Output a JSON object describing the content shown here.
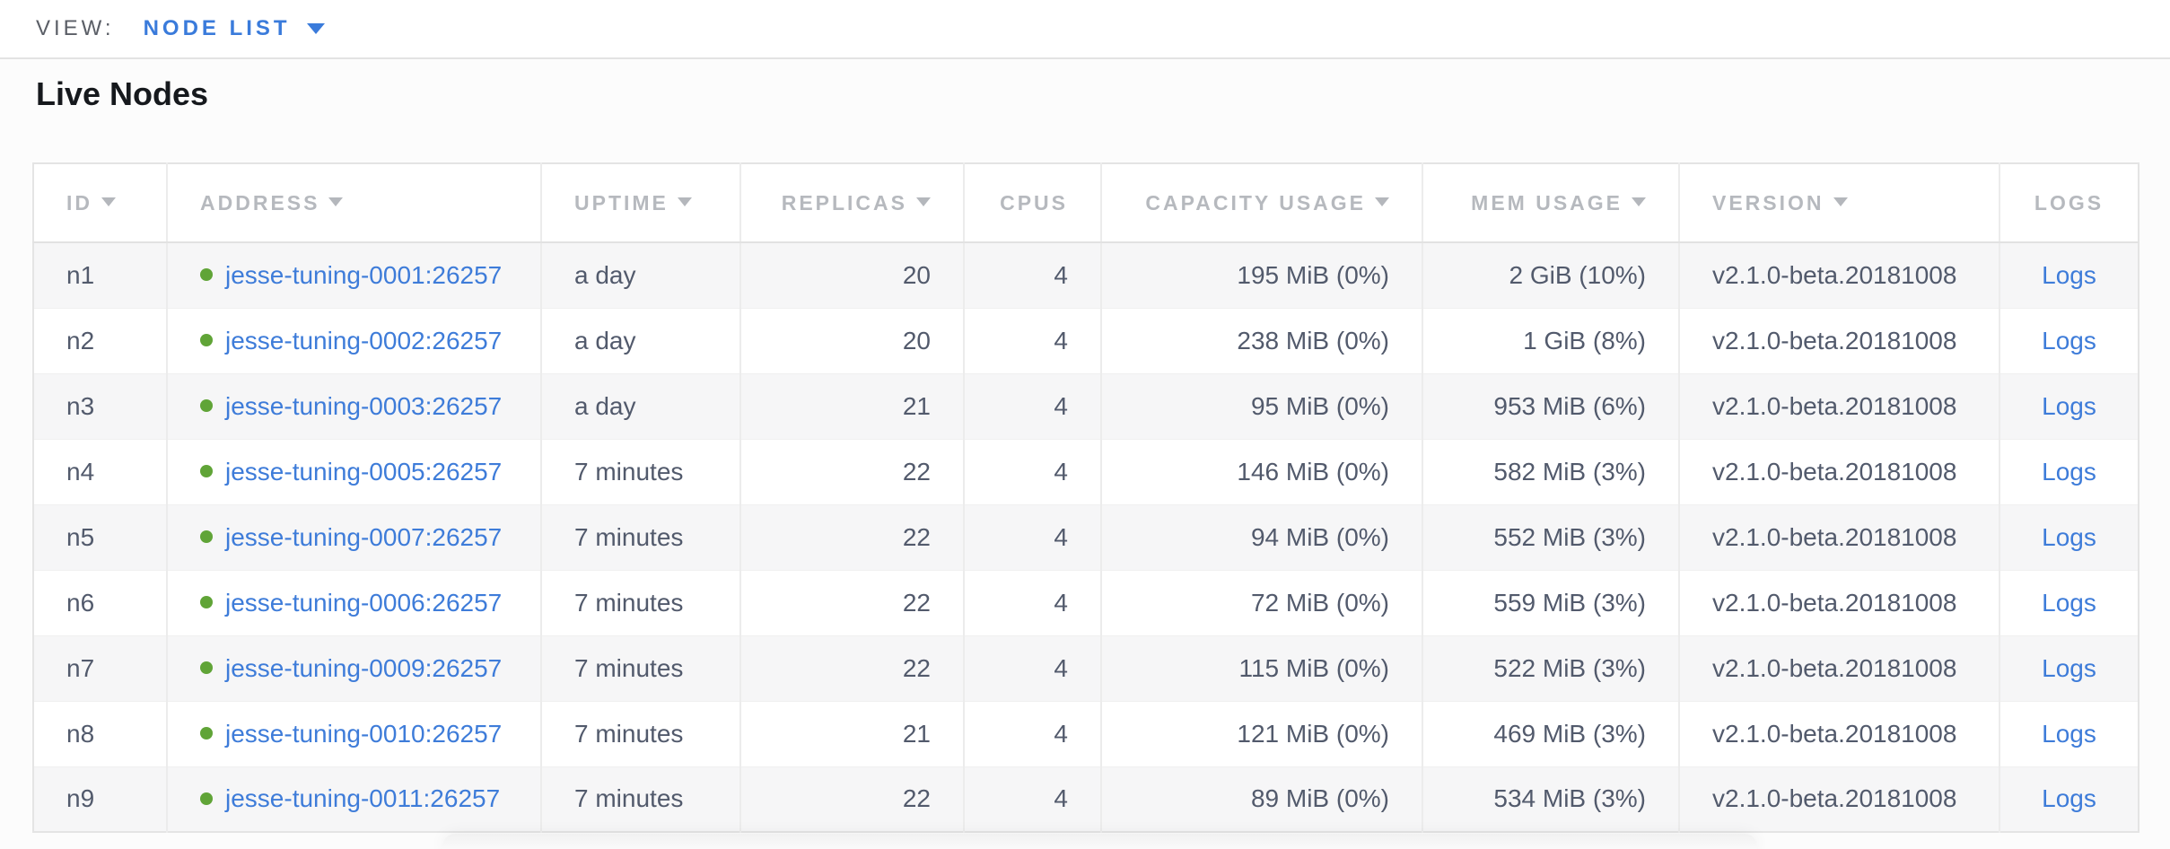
{
  "view_bar": {
    "label": "VIEW:",
    "selected": "NODE LIST"
  },
  "page": {
    "title": "Live Nodes"
  },
  "colors": {
    "accent_blue": "#3a7bdb",
    "link_blue": "#3e7cd9",
    "status_green": "#60a437",
    "header_gray": "#b6b9be",
    "cell_slate": "#525a6c"
  },
  "table": {
    "columns": [
      {
        "label": "ID",
        "sortable": true
      },
      {
        "label": "ADDRESS",
        "sortable": true
      },
      {
        "label": "UPTIME",
        "sortable": true
      },
      {
        "label": "REPLICAS",
        "sortable": true
      },
      {
        "label": "CPUS",
        "sortable": false
      },
      {
        "label": "CAPACITY USAGE",
        "sortable": true
      },
      {
        "label": "MEM USAGE",
        "sortable": true
      },
      {
        "label": "VERSION",
        "sortable": true
      },
      {
        "label": "LOGS",
        "sortable": false
      }
    ],
    "rows": [
      {
        "id": "n1",
        "address": "jesse-tuning-0001:26257",
        "uptime": "a day",
        "replicas": "20",
        "cpus": "4",
        "capacity_usage": "195 MiB (0%)",
        "mem_usage": "2 GiB (10%)",
        "version": "v2.1.0-beta.20181008",
        "logs": "Logs"
      },
      {
        "id": "n2",
        "address": "jesse-tuning-0002:26257",
        "uptime": "a day",
        "replicas": "20",
        "cpus": "4",
        "capacity_usage": "238 MiB (0%)",
        "mem_usage": "1 GiB (8%)",
        "version": "v2.1.0-beta.20181008",
        "logs": "Logs"
      },
      {
        "id": "n3",
        "address": "jesse-tuning-0003:26257",
        "uptime": "a day",
        "replicas": "21",
        "cpus": "4",
        "capacity_usage": "95 MiB (0%)",
        "mem_usage": "953 MiB (6%)",
        "version": "v2.1.0-beta.20181008",
        "logs": "Logs"
      },
      {
        "id": "n4",
        "address": "jesse-tuning-0005:26257",
        "uptime": "7 minutes",
        "replicas": "22",
        "cpus": "4",
        "capacity_usage": "146 MiB (0%)",
        "mem_usage": "582 MiB (3%)",
        "version": "v2.1.0-beta.20181008",
        "logs": "Logs"
      },
      {
        "id": "n5",
        "address": "jesse-tuning-0007:26257",
        "uptime": "7 minutes",
        "replicas": "22",
        "cpus": "4",
        "capacity_usage": "94 MiB (0%)",
        "mem_usage": "552 MiB (3%)",
        "version": "v2.1.0-beta.20181008",
        "logs": "Logs"
      },
      {
        "id": "n6",
        "address": "jesse-tuning-0006:26257",
        "uptime": "7 minutes",
        "replicas": "22",
        "cpus": "4",
        "capacity_usage": "72 MiB (0%)",
        "mem_usage": "559 MiB (3%)",
        "version": "v2.1.0-beta.20181008",
        "logs": "Logs"
      },
      {
        "id": "n7",
        "address": "jesse-tuning-0009:26257",
        "uptime": "7 minutes",
        "replicas": "22",
        "cpus": "4",
        "capacity_usage": "115 MiB (0%)",
        "mem_usage": "522 MiB (3%)",
        "version": "v2.1.0-beta.20181008",
        "logs": "Logs"
      },
      {
        "id": "n8",
        "address": "jesse-tuning-0010:26257",
        "uptime": "7 minutes",
        "replicas": "21",
        "cpus": "4",
        "capacity_usage": "121 MiB (0%)",
        "mem_usage": "469 MiB (3%)",
        "version": "v2.1.0-beta.20181008",
        "logs": "Logs"
      },
      {
        "id": "n9",
        "address": "jesse-tuning-0011:26257",
        "uptime": "7 minutes",
        "replicas": "22",
        "cpus": "4",
        "capacity_usage": "89 MiB (0%)",
        "mem_usage": "534 MiB (3%)",
        "version": "v2.1.0-beta.20181008",
        "logs": "Logs"
      }
    ]
  }
}
